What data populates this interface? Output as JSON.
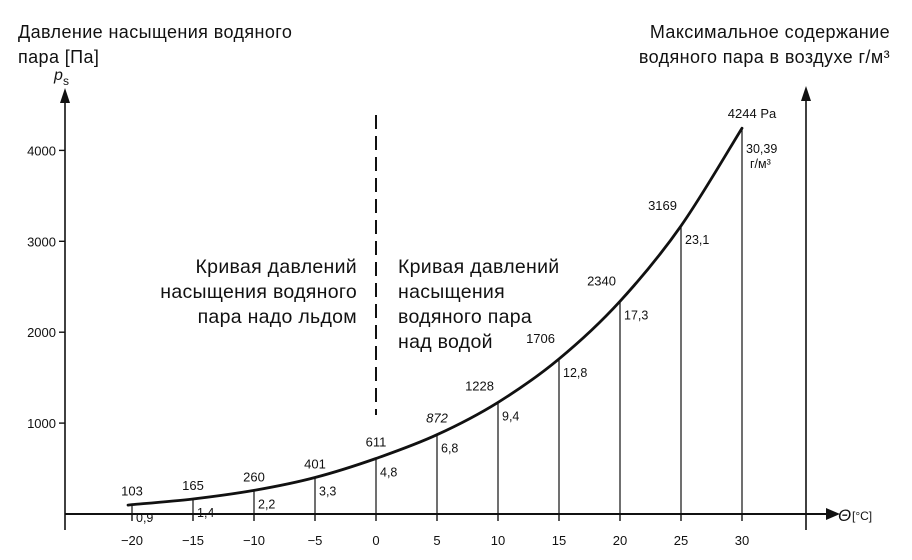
{
  "left_title": "Давление насыщения водяного\nпара [Па]",
  "right_title": "Максимальное содержание\nводяного пара в воздухе г/м³",
  "region_ice_label": "Кривая давлений\nнасыщения водяного\nпара надо льдом",
  "region_water_label": "Кривая давлений\nнасыщения\nводяного пара\nнад водой",
  "chart_data": {
    "type": "line",
    "ylabel": "p_s",
    "y_symbol": "p",
    "y_subscript": "s",
    "xlabel": "Θ[°C]",
    "x_symbol": "Θ",
    "x_unit": "[°C]",
    "xlim": [
      -23,
      33
    ],
    "ylim": [
      -300,
      4700
    ],
    "x_ticks": [
      "-20",
      "-15",
      "-10",
      "-5",
      "0",
      "5",
      "10",
      "15",
      "20",
      "25",
      "30"
    ],
    "y_ticks": [
      "1000",
      "2000",
      "3000",
      "4000"
    ],
    "divider_at_x": 0,
    "points": [
      {
        "x": -20,
        "p": 103,
        "p_label": "103",
        "c_label": "0,9"
      },
      {
        "x": -15,
        "p": 165,
        "p_label": "165",
        "c_label": "1,4"
      },
      {
        "x": -10,
        "p": 260,
        "p_label": "260",
        "c_label": "2,2"
      },
      {
        "x": -5,
        "p": 401,
        "p_label": "401",
        "c_label": "3,3"
      },
      {
        "x": 0,
        "p": 611,
        "p_label": "611",
        "c_label": "4,8"
      },
      {
        "x": 5,
        "p": 872,
        "p_label": "872",
        "c_label": "6,8"
      },
      {
        "x": 10,
        "p": 1228,
        "p_label": "1228",
        "c_label": "9,4"
      },
      {
        "x": 15,
        "p": 1706,
        "p_label": "1706",
        "c_label": "12,8"
      },
      {
        "x": 20,
        "p": 2340,
        "p_label": "2340",
        "c_label": "17,3"
      },
      {
        "x": 25,
        "p": 3169,
        "p_label": "3169",
        "c_label": "23,1"
      },
      {
        "x": 30,
        "p": 4244,
        "p_label": "4244 Pa",
        "c_label": "30,39",
        "c_unit": "г/м³"
      }
    ]
  }
}
